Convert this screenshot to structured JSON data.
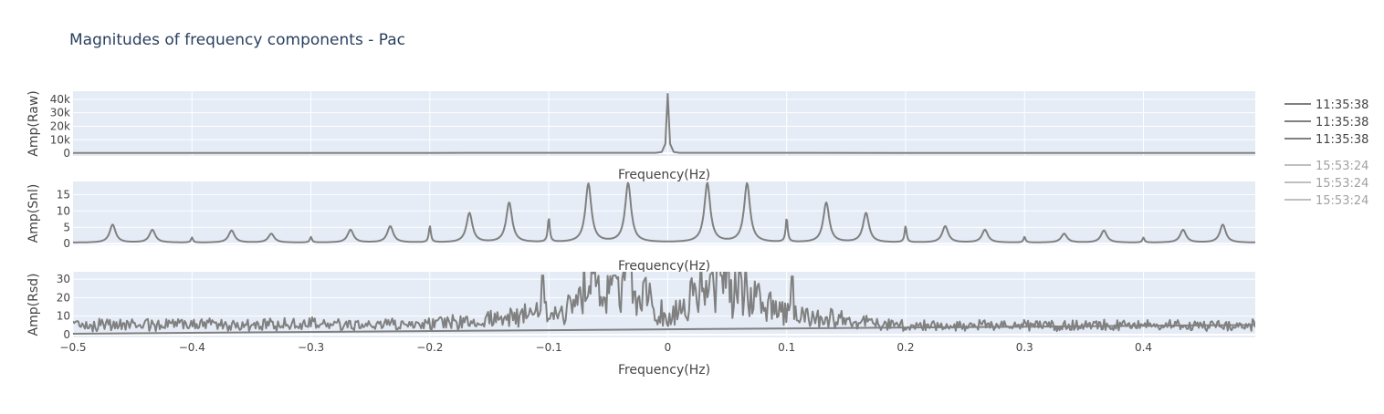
{
  "title": "Magnitudes of frequency components - Pac",
  "legend": {
    "group_a": [
      "11:35:38",
      "11:35:38",
      "11:35:38"
    ],
    "group_b": [
      "15:53:24",
      "15:53:24",
      "15:53:24"
    ],
    "group_b_opacity": 0.5
  },
  "colors": {
    "plot_bg": "#e5ecf6",
    "grid": "#ffffff",
    "line": "#808080",
    "text": "#444444",
    "title_text": "#2a3f5f"
  },
  "chart_data": [
    {
      "type": "line",
      "ylabel": "Amp(Raw)",
      "xlabel": "Frequency(Hz)",
      "xlim": [
        -0.5,
        0.494
      ],
      "ylim": [
        -2000,
        46000
      ],
      "yticks": [
        0,
        10000,
        20000,
        30000,
        40000
      ],
      "ytick_labels": [
        "0",
        "10k",
        "20k",
        "30k",
        "40k"
      ],
      "xtick_values": [
        -0.4,
        -0.3,
        -0.2,
        -0.1,
        0,
        0.1,
        0.2,
        0.3,
        0.4
      ],
      "show_xtick_labels": false,
      "series": [
        {
          "x": [
            -0.5,
            -0.2,
            -0.01,
            -0.005,
            -0.002,
            0,
            0.002,
            0.005,
            0.01,
            0.2,
            0.494
          ],
          "y": [
            200,
            200,
            300,
            1000,
            7000,
            44000,
            7000,
            1000,
            300,
            200,
            200
          ]
        }
      ]
    },
    {
      "type": "line",
      "ylabel": "Amp(Snl)",
      "xlabel": "Frequency(Hz)",
      "xlim": [
        -0.5,
        0.494
      ],
      "ylim": [
        -0.5,
        19
      ],
      "yticks": [
        0,
        5,
        10,
        15
      ],
      "ytick_labels": [
        "0",
        "5",
        "10",
        "15"
      ],
      "xtick_values": [
        -0.4,
        -0.3,
        -0.2,
        -0.1,
        0,
        0.1,
        0.2,
        0.3,
        0.4
      ],
      "show_xtick_labels": false,
      "baseline": 0.3,
      "peaks": [
        {
          "x": -0.4667,
          "y": 5.8,
          "w": 0.003
        },
        {
          "x": -0.4333,
          "y": 4.2,
          "w": 0.003
        },
        {
          "x": -0.4,
          "y": 1.8,
          "w": 0.001
        },
        {
          "x": -0.3667,
          "y": 4.0,
          "w": 0.003
        },
        {
          "x": -0.3333,
          "y": 3.0,
          "w": 0.003
        },
        {
          "x": -0.3,
          "y": 2.0,
          "w": 0.001
        },
        {
          "x": -0.2667,
          "y": 4.2,
          "w": 0.003
        },
        {
          "x": -0.2333,
          "y": 5.3,
          "w": 0.003
        },
        {
          "x": -0.2,
          "y": 5.3,
          "w": 0.001
        },
        {
          "x": -0.1667,
          "y": 9.3,
          "w": 0.003
        },
        {
          "x": -0.1333,
          "y": 12.5,
          "w": 0.003
        },
        {
          "x": -0.1,
          "y": 7.6,
          "w": 0.001
        },
        {
          "x": -0.0667,
          "y": 18.2,
          "w": 0.003
        },
        {
          "x": -0.0333,
          "y": 18.4,
          "w": 0.003
        },
        {
          "x": 0.0333,
          "y": 18.4,
          "w": 0.003
        },
        {
          "x": 0.0667,
          "y": 18.3,
          "w": 0.003
        },
        {
          "x": 0.1,
          "y": 7.6,
          "w": 0.001
        },
        {
          "x": 0.1333,
          "y": 12.5,
          "w": 0.003
        },
        {
          "x": 0.1667,
          "y": 9.3,
          "w": 0.003
        },
        {
          "x": 0.2,
          "y": 5.3,
          "w": 0.001
        },
        {
          "x": 0.2333,
          "y": 5.3,
          "w": 0.003
        },
        {
          "x": 0.2667,
          "y": 4.2,
          "w": 0.003
        },
        {
          "x": 0.3,
          "y": 2.0,
          "w": 0.001
        },
        {
          "x": 0.3333,
          "y": 3.0,
          "w": 0.003
        },
        {
          "x": 0.3667,
          "y": 4.0,
          "w": 0.003
        },
        {
          "x": 0.4,
          "y": 1.8,
          "w": 0.001
        },
        {
          "x": 0.4333,
          "y": 4.2,
          "w": 0.003
        },
        {
          "x": 0.4667,
          "y": 5.8,
          "w": 0.003
        }
      ]
    },
    {
      "type": "line",
      "ylabel": "Amp(Rsd)",
      "xlabel": "Frequency(Hz)",
      "xlim": [
        -0.5,
        0.494
      ],
      "ylim": [
        -1.5,
        34
      ],
      "yticks": [
        0,
        10,
        20,
        30
      ],
      "ytick_labels": [
        "0",
        "10",
        "20",
        "30"
      ],
      "xtick_values": [
        -0.5,
        -0.4,
        -0.3,
        -0.2,
        -0.1,
        0,
        0.1,
        0.2,
        0.3,
        0.4
      ],
      "xtick_labels": [
        "−0.5",
        "−0.4",
        "−0.3",
        "−0.2",
        "−0.1",
        "0",
        "0.1",
        "0.2",
        "0.3",
        "0.4"
      ],
      "show_xtick_labels": true,
      "envelope": {
        "x": [
          -0.5,
          -0.2,
          -0.15,
          -0.12,
          -0.1,
          -0.08,
          -0.067,
          -0.05,
          -0.033,
          -0.02,
          0,
          0.02,
          0.033,
          0.05,
          0.067,
          0.08,
          0.1,
          0.12,
          0.15,
          0.2,
          0.494
        ],
        "y": [
          5.5,
          5.5,
          8,
          10,
          12,
          16,
          28,
          26,
          28,
          20,
          8,
          20,
          28,
          26,
          28,
          16,
          12,
          10,
          8,
          5,
          5
        ]
      },
      "noise_scale": 0.4,
      "spikes": [
        {
          "x": -0.105,
          "y": 32
        },
        {
          "x": 0.105,
          "y": 31.5
        },
        {
          "x": 0.045,
          "y": 32
        },
        {
          "x": -0.045,
          "y": 32
        }
      ],
      "trend_line": {
        "x": [
          -0.5,
          0.494
        ],
        "y": [
          0.5,
          5.2
        ]
      }
    }
  ]
}
